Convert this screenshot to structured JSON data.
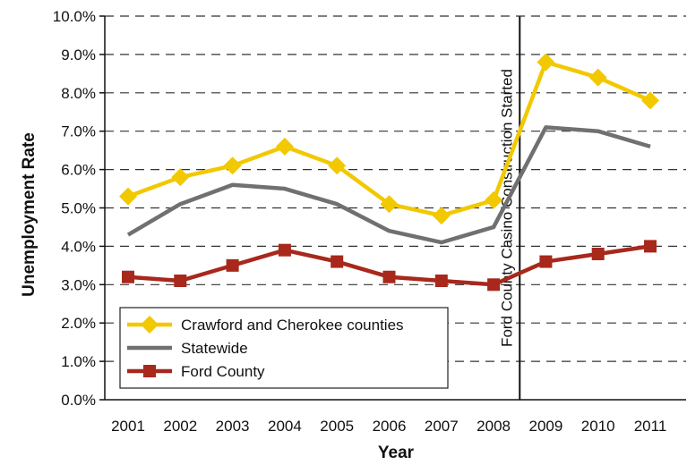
{
  "chart_data": {
    "type": "line",
    "xlabel": "Year",
    "ylabel": "Unemployment Rate",
    "categories": [
      "2001",
      "2002",
      "2003",
      "2004",
      "2005",
      "2006",
      "2007",
      "2008",
      "2009",
      "2010",
      "2011"
    ],
    "ylim": [
      0,
      10
    ],
    "yticks": [
      "0.0%",
      "1.0%",
      "2.0%",
      "3.0%",
      "4.0%",
      "5.0%",
      "6.0%",
      "7.0%",
      "8.0%",
      "9.0%",
      "10.0%"
    ],
    "grid": "horizontal dashed",
    "legend_position": "bottom-left",
    "annotation": {
      "text": "Ford County Casino Construction Started",
      "position": "between 2008 and 2009"
    },
    "series": [
      {
        "name": "Crawford and Cherokee counties",
        "color": "#f2c800",
        "marker": "diamond",
        "values": [
          5.3,
          5.8,
          6.1,
          6.6,
          6.1,
          5.1,
          4.8,
          5.2,
          8.8,
          8.4,
          7.8
        ]
      },
      {
        "name": "Statewide",
        "color": "#707070",
        "marker": "none",
        "values": [
          4.3,
          5.1,
          5.6,
          5.5,
          5.1,
          4.4,
          4.1,
          4.5,
          7.1,
          7.0,
          6.6
        ]
      },
      {
        "name": "Ford County",
        "color": "#a8281c",
        "marker": "square",
        "values": [
          3.2,
          3.1,
          3.5,
          3.9,
          3.6,
          3.2,
          3.1,
          3.0,
          3.6,
          3.8,
          4.0
        ]
      }
    ]
  }
}
